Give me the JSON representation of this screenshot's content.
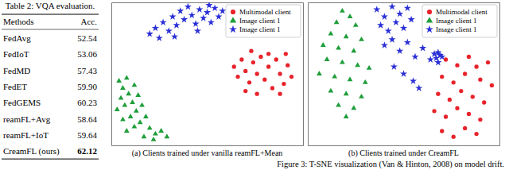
{
  "table": {
    "title": "Table 2: VQA evaluation.",
    "columns": [
      "Methods",
      "Acc."
    ],
    "rows": [
      [
        "FedAvg",
        "52.54"
      ],
      [
        "FedIoT",
        "53.06"
      ],
      [
        "FedMD",
        "57.43"
      ],
      [
        "FedET",
        "59.90"
      ],
      [
        "FedGEMS",
        "60.23"
      ],
      [
        "reamFL+Avg",
        "58.64"
      ],
      [
        "reamFL+IoT",
        "59.64"
      ],
      [
        "CreamFL (ours)",
        "62.12"
      ]
    ]
  },
  "figure_caption": "Figure 3: T-SNE visualization (Van & Hinton, 2008) on model drift.",
  "chart_data": [
    {
      "type": "scatter",
      "title": "(a) Clients trained under vanilla reamFL+Mean",
      "xlim": [
        0,
        100
      ],
      "ylim": [
        0,
        100
      ],
      "tick_labels": false,
      "legend": "upper right",
      "series": [
        {
          "name": "Multimodal client",
          "color": "#e8222a",
          "marker": "circle",
          "x": [
            64,
            66,
            68,
            70,
            72,
            74,
            76,
            78,
            80,
            82,
            84,
            86,
            88,
            90,
            92,
            94,
            70,
            76,
            82,
            88,
            73,
            91
          ],
          "values": [
            55,
            48,
            60,
            52,
            44,
            58,
            50,
            62,
            46,
            55,
            40,
            60,
            50,
            43,
            56,
            48,
            38,
            36,
            64,
            36,
            66,
            64
          ]
        },
        {
          "name": "Image client 1",
          "color": "#1f9e3a",
          "marker": "triangle",
          "x": [
            4,
            6,
            8,
            5,
            9,
            12,
            3,
            7,
            11,
            14,
            6,
            10,
            13,
            16,
            8,
            12,
            15,
            18,
            20,
            23,
            26,
            29,
            17,
            22
          ],
          "values": [
            45,
            40,
            47,
            33,
            36,
            42,
            25,
            28,
            30,
            35,
            18,
            20,
            24,
            28,
            10,
            13,
            16,
            20,
            12,
            8,
            10,
            6,
            6,
            4
          ]
        },
        {
          "name": "Image client 1",
          "color": "#2a2fd6",
          "marker": "star",
          "x": [
            20,
            23,
            25,
            27,
            30,
            32,
            34,
            36,
            38,
            40,
            42,
            44,
            46,
            48,
            50,
            52,
            54,
            56,
            58,
            33,
            45,
            51
          ],
          "values": [
            78,
            82,
            75,
            86,
            80,
            90,
            84,
            94,
            88,
            97,
            91,
            85,
            95,
            89,
            93,
            86,
            96,
            90,
            94,
            76,
            80,
            98
          ]
        }
      ]
    },
    {
      "type": "scatter",
      "title": "(b) Clients trained under CreamFL",
      "xlim": [
        0,
        100
      ],
      "ylim": [
        0,
        100
      ],
      "tick_labels": false,
      "legend": "upper right",
      "series": [
        {
          "name": "Multimodal client",
          "color": "#e8222a",
          "marker": "circle",
          "x": [
            72,
            78,
            84,
            88,
            94,
            70,
            76,
            82,
            90,
            96,
            68,
            74,
            80,
            86,
            92,
            66,
            72,
            78,
            84,
            90,
            70,
            76,
            82,
            88
          ],
          "values": [
            60,
            56,
            62,
            55,
            58,
            48,
            44,
            50,
            46,
            42,
            36,
            32,
            38,
            34,
            30,
            24,
            20,
            26,
            22,
            18,
            10,
            6,
            12,
            8
          ]
        },
        {
          "name": "Image client 1",
          "color": "#1f9e3a",
          "marker": "triangle",
          "x": [
            18,
            22,
            15,
            25,
            12,
            20,
            28,
            8,
            16,
            24,
            10,
            18,
            26,
            32,
            6,
            14,
            22,
            30,
            12,
            20,
            28,
            16,
            24,
            20
          ],
          "values": [
            94,
            90,
            86,
            84,
            78,
            76,
            74,
            70,
            68,
            66,
            60,
            58,
            56,
            54,
            50,
            48,
            46,
            44,
            38,
            36,
            34,
            28,
            26,
            20
          ]
        },
        {
          "name": "Image client 1",
          "color": "#2a2fd6",
          "marker": "star",
          "x": [
            36,
            40,
            44,
            48,
            52,
            38,
            42,
            46,
            50,
            54,
            40,
            44,
            48,
            52,
            56,
            60,
            64,
            66,
            68,
            70,
            67,
            69,
            68,
            45,
            50,
            55,
            58
          ],
          "values": [
            95,
            90,
            97,
            92,
            96,
            84,
            80,
            86,
            82,
            88,
            70,
            74,
            66,
            72,
            62,
            68,
            60,
            64,
            58,
            62,
            61,
            63,
            65,
            55,
            50,
            45,
            40
          ]
        }
      ]
    }
  ]
}
